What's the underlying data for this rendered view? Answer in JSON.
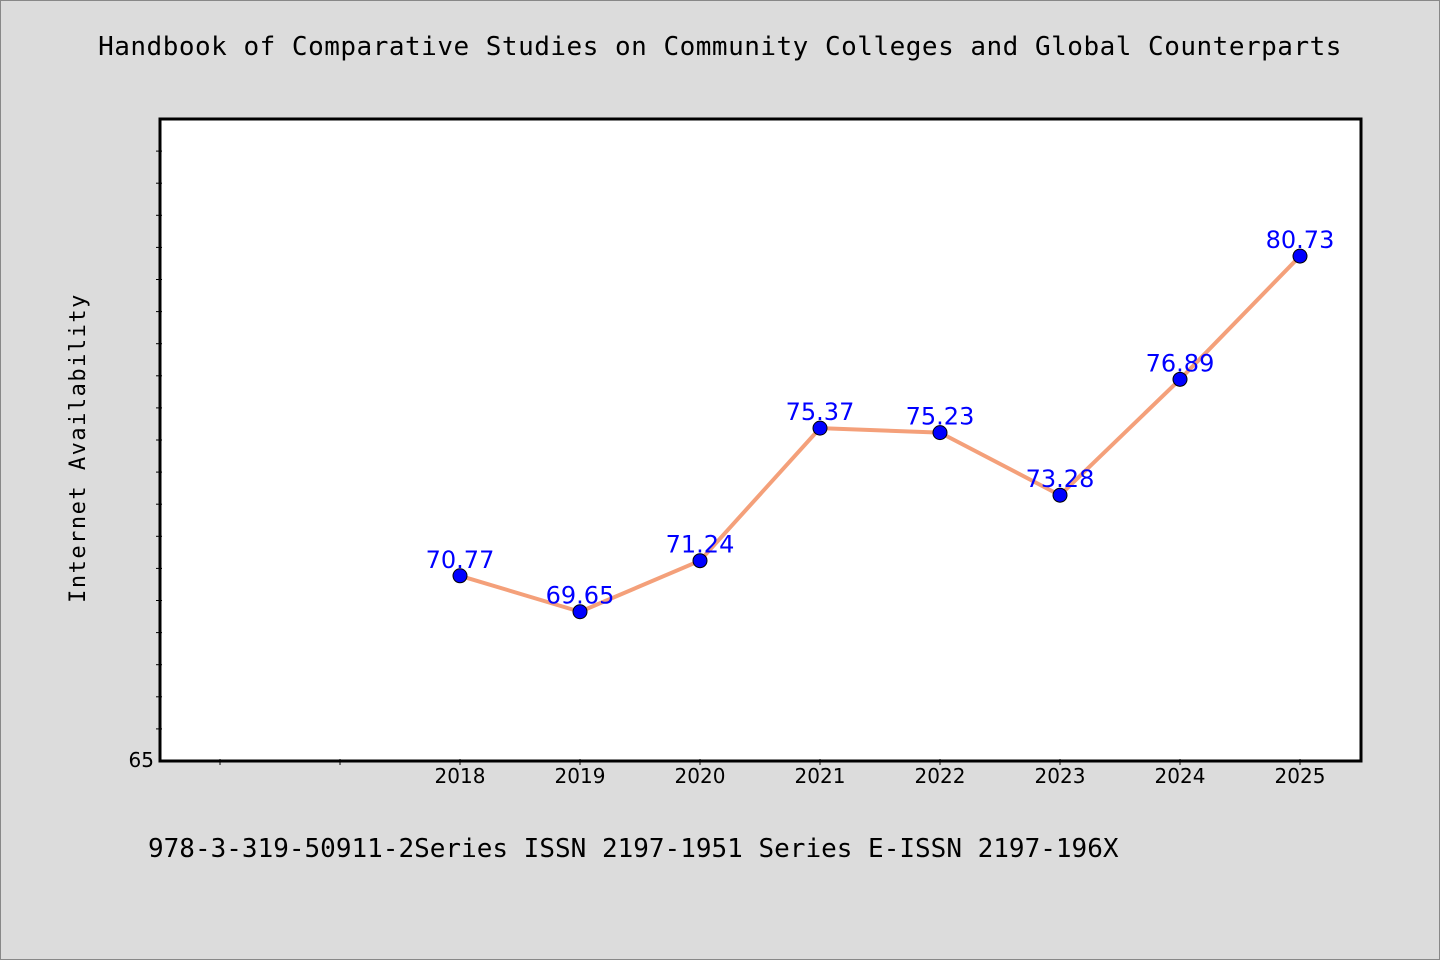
{
  "chart_data": {
    "type": "line",
    "title": "Handbook of Comparative Studies on Community Colleges and Global Counterparts",
    "ylabel": "Internet Availability",
    "xlabel": "",
    "categories": [
      "2018",
      "2019",
      "2020",
      "2021",
      "2022",
      "2023",
      "2024",
      "2025"
    ],
    "series": [
      {
        "values": [
          70.77,
          69.65,
          71.24,
          75.37,
          75.23,
          73.28,
          76.89,
          80.73
        ]
      }
    ],
    "data_labels": [
      "70.77",
      "69.65",
      "71.24",
      "75.37",
      "75.23",
      "73.28",
      "76.89",
      "80.73"
    ],
    "y_tick_labels": [
      "65"
    ],
    "ylim": [
      65,
      85
    ],
    "grid": false,
    "colors": {
      "line": "#f4a07a",
      "marker": "#0000ff",
      "data_label": "#0000ff",
      "plot_background": "#ffffff",
      "page_background": "#dcdcdc"
    }
  },
  "footer": {
    "text": "978-3-319-50911-2Series ISSN 2197-1951 Series E-ISSN 2197-196X"
  }
}
